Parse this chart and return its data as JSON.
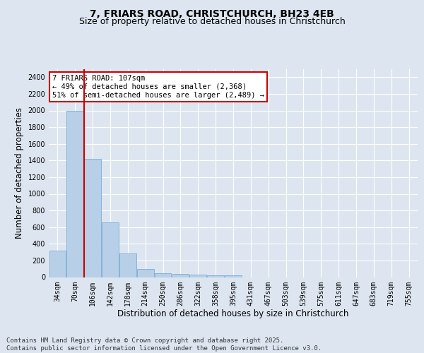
{
  "title_line1": "7, FRIARS ROAD, CHRISTCHURCH, BH23 4EB",
  "title_line2": "Size of property relative to detached houses in Christchurch",
  "xlabel": "Distribution of detached houses by size in Christchurch",
  "ylabel": "Number of detached properties",
  "categories": [
    "34sqm",
    "70sqm",
    "106sqm",
    "142sqm",
    "178sqm",
    "214sqm",
    "250sqm",
    "286sqm",
    "322sqm",
    "358sqm",
    "395sqm",
    "431sqm",
    "467sqm",
    "503sqm",
    "539sqm",
    "575sqm",
    "611sqm",
    "647sqm",
    "683sqm",
    "719sqm",
    "755sqm"
  ],
  "values": [
    320,
    2000,
    1420,
    660,
    285,
    100,
    45,
    35,
    30,
    25,
    20,
    0,
    0,
    0,
    0,
    0,
    0,
    0,
    0,
    0,
    0
  ],
  "bar_color": "#b8cfe8",
  "bar_edge_color": "#7aadd4",
  "vline_color": "#cc0000",
  "vline_pos": 1.5,
  "annotation_text": "7 FRIARS ROAD: 107sqm\n← 49% of detached houses are smaller (2,368)\n51% of semi-detached houses are larger (2,489) →",
  "annotation_box_edgecolor": "#cc0000",
  "annotation_facecolor": "white",
  "ylim": [
    0,
    2500
  ],
  "yticks": [
    0,
    200,
    400,
    600,
    800,
    1000,
    1200,
    1400,
    1600,
    1800,
    2000,
    2200,
    2400
  ],
  "bg_color": "#dde6f0",
  "plot_bg_color": "#dde6f0",
  "grid_color": "white",
  "footer_line1": "Contains HM Land Registry data © Crown copyright and database right 2025.",
  "footer_line2": "Contains public sector information licensed under the Open Government Licence v3.0.",
  "title_fontsize": 10,
  "subtitle_fontsize": 9,
  "axis_label_fontsize": 8.5,
  "tick_fontsize": 7,
  "footer_fontsize": 6.5,
  "ann_fontsize": 7.5
}
